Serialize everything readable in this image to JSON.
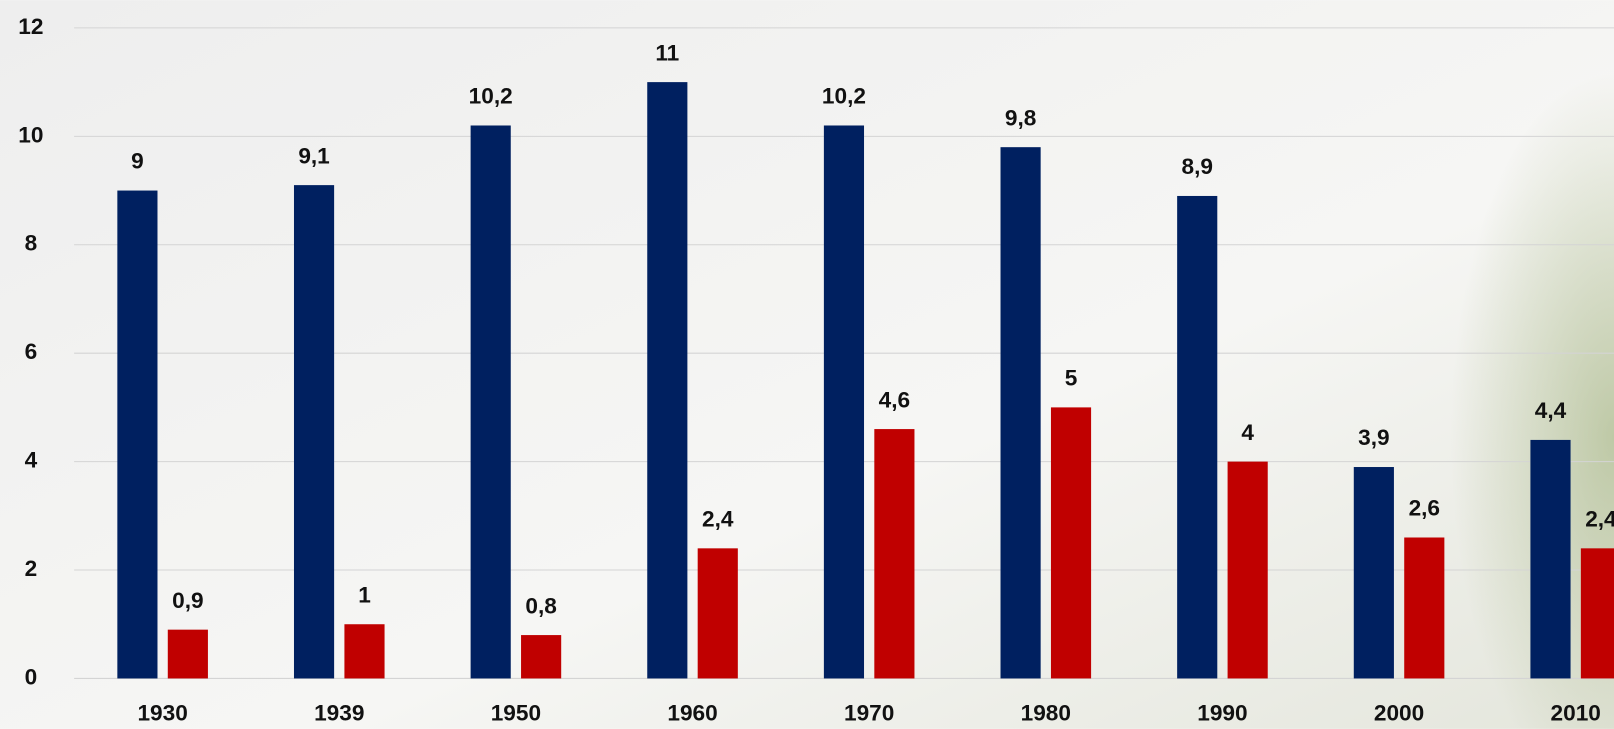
{
  "chart_data": {
    "type": "bar",
    "categories": [
      "1930",
      "1939",
      "1950",
      "1960",
      "1970",
      "1980",
      "1990",
      "2000",
      "2010"
    ],
    "series": [
      {
        "color": "#002060",
        "values": [
          9,
          9.1,
          10.2,
          11,
          10.2,
          9.8,
          8.9,
          3.9,
          4.4
        ],
        "value_labels": [
          "9",
          "9,1",
          "10,2",
          "11",
          "10,2",
          "9,8",
          "8,9",
          "3,9",
          "4,4"
        ]
      },
      {
        "color": "#c00000",
        "values": [
          0.9,
          1,
          0.8,
          2.4,
          4.6,
          5,
          4,
          2.6,
          2.4
        ],
        "value_labels": [
          "0,9",
          "1",
          "0,8",
          "2,4",
          "4,6",
          "5",
          "4",
          "2,6",
          "2,4"
        ]
      }
    ],
    "ylim": [
      0,
      12
    ],
    "yticks": [
      0,
      2,
      4,
      6,
      8,
      10,
      12
    ],
    "grid": true
  }
}
